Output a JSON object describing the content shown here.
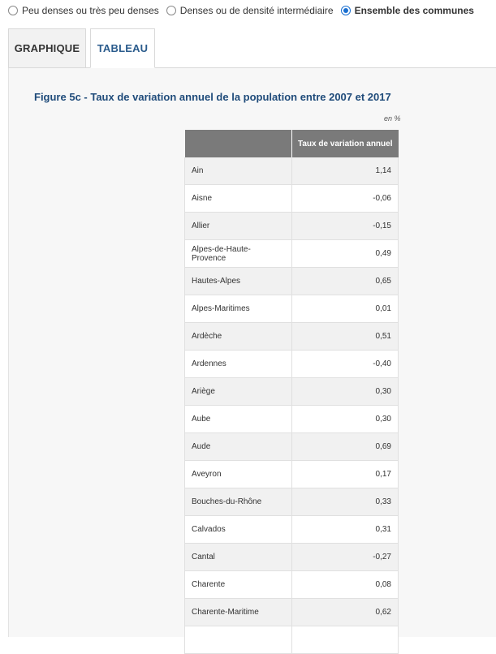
{
  "filters": {
    "options": [
      {
        "label": "Peu denses ou très peu denses",
        "checked": false
      },
      {
        "label": "Denses ou de densité intermédiaire",
        "checked": false
      },
      {
        "label": "Ensemble des communes",
        "checked": true
      }
    ]
  },
  "tabs": [
    {
      "label": "GRAPHIQUE",
      "active": false
    },
    {
      "label": "TABLEAU",
      "active": true
    }
  ],
  "figure": {
    "title": "Figure 5c - Taux de variation annuel de la population entre 2007 et 2017",
    "unit": "en %"
  },
  "table": {
    "columns": [
      "",
      "Taux de variation annuel"
    ],
    "rows": [
      {
        "name": "Ain",
        "value": "1,14"
      },
      {
        "name": "Aisne",
        "value": "-0,06"
      },
      {
        "name": "Allier",
        "value": "-0,15"
      },
      {
        "name": "Alpes-de-Haute-Provence",
        "value": "0,49"
      },
      {
        "name": "Hautes-Alpes",
        "value": "0,65"
      },
      {
        "name": "Alpes-Maritimes",
        "value": "0,01"
      },
      {
        "name": "Ardèche",
        "value": "0,51"
      },
      {
        "name": "Ardennes",
        "value": "-0,40"
      },
      {
        "name": "Ariège",
        "value": "0,30"
      },
      {
        "name": "Aube",
        "value": "0,30"
      },
      {
        "name": "Aude",
        "value": "0,69"
      },
      {
        "name": "Aveyron",
        "value": "0,17"
      },
      {
        "name": "Bouches-du-Rhône",
        "value": "0,33"
      },
      {
        "name": "Calvados",
        "value": "0,31"
      },
      {
        "name": "Cantal",
        "value": "-0,27"
      },
      {
        "name": "Charente",
        "value": "0,08"
      },
      {
        "name": "Charente-Maritime",
        "value": "0,62"
      },
      {
        "name": "",
        "value": ""
      }
    ]
  },
  "colors": {
    "accent": "#1a6fd0",
    "title": "#1f4b7a",
    "header_bg": "#7a7a7a"
  }
}
